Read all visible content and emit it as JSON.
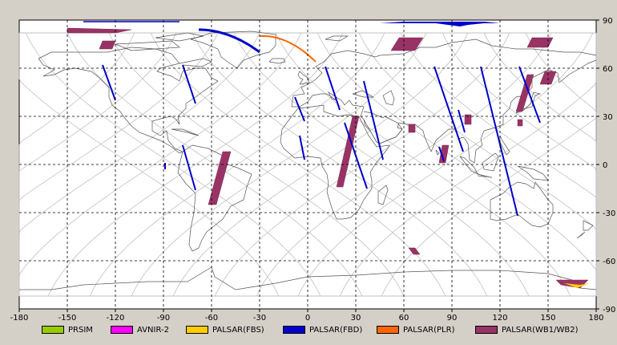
{
  "map": {
    "x_ticks": [
      "-180",
      "-150",
      "-120",
      "-90",
      "-60",
      "-30",
      "0",
      "30",
      "60",
      "90",
      "120",
      "150",
      "180"
    ],
    "y_ticks": [
      "90",
      "60",
      "30",
      "0",
      "-30",
      "-60",
      "-90"
    ],
    "colors": {
      "background": "#ffffff",
      "coast": "#555555",
      "orbit": "#c0c0c0",
      "grid": "#000000"
    }
  },
  "legend": [
    {
      "label": "PRSIM",
      "color": "#99cc00"
    },
    {
      "label": "AVNIR-2",
      "color": "#ff00ff"
    },
    {
      "label": "PALSAR(FBS)",
      "color": "#ffcc00"
    },
    {
      "label": "PALSAR(FBD)",
      "color": "#0000cc"
    },
    {
      "label": "PALSAR(PLR)",
      "color": "#ff6600"
    },
    {
      "label": "PALSAR(WB1/WB2)",
      "color": "#993366"
    }
  ],
  "swaths": {
    "fbd": [
      {
        "lon1": -128,
        "lat1": 62,
        "lon2": -120,
        "lat2": 40
      },
      {
        "lon1": -78,
        "lat1": 62,
        "lon2": -70,
        "lat2": 38
      },
      {
        "lon1": -78,
        "lat1": 12,
        "lon2": -70,
        "lat2": -16
      },
      {
        "lon1": -89,
        "lat1": 1,
        "lon2": -89,
        "lat2": -3
      },
      {
        "lon1": -8,
        "lat1": 42,
        "lon2": -2,
        "lat2": 27
      },
      {
        "lon1": -5,
        "lat1": 18,
        "lon2": -2,
        "lat2": 3
      },
      {
        "lon1": 11,
        "lat1": 61,
        "lon2": 20,
        "lat2": 34
      },
      {
        "lon1": 23,
        "lat1": 26,
        "lon2": 37,
        "lat2": -15
      },
      {
        "lon1": 35,
        "lat1": 52,
        "lon2": 47,
        "lat2": 3
      },
      {
        "lon1": 79,
        "lat1": 61,
        "lon2": 97,
        "lat2": 8
      },
      {
        "lon1": 94,
        "lat1": 34,
        "lon2": 98,
        "lat2": 20
      },
      {
        "lon1": 108,
        "lat1": 61,
        "lon2": 131,
        "lat2": -32
      },
      {
        "lon1": 132,
        "lat1": 61,
        "lon2": 145,
        "lat2": 26
      },
      {
        "lon1": 82,
        "lat1": 11,
        "lon2": 85,
        "lat2": 2
      }
    ],
    "wb": [
      [
        [
          -62,
          -25
        ],
        [
          -57,
          -25
        ],
        [
          -48,
          8
        ],
        [
          -53,
          8
        ]
      ],
      [
        [
          18,
          -14
        ],
        [
          22,
          -14
        ],
        [
          32,
          30
        ],
        [
          28,
          30
        ]
      ],
      [
        [
          82,
          1
        ],
        [
          86,
          1
        ],
        [
          88,
          12
        ],
        [
          84,
          12
        ]
      ],
      [
        [
          130,
          33
        ],
        [
          134,
          33
        ],
        [
          141,
          56
        ],
        [
          137,
          56
        ]
      ],
      [
        [
          -130,
          72
        ],
        [
          -122,
          72
        ],
        [
          -120,
          77
        ],
        [
          -128,
          77
        ]
      ],
      [
        [
          -150,
          82
        ],
        [
          -120,
          82
        ],
        [
          -110,
          84
        ],
        [
          -150,
          85
        ]
      ],
      [
        [
          52,
          71
        ],
        [
          67,
          71
        ],
        [
          72,
          79
        ],
        [
          57,
          79
        ]
      ],
      [
        [
          137,
          73
        ],
        [
          150,
          73
        ],
        [
          153,
          79
        ],
        [
          140,
          79
        ]
      ],
      [
        [
          145,
          50
        ],
        [
          152,
          50
        ],
        [
          155,
          58
        ],
        [
          148,
          58
        ]
      ],
      [
        [
          63,
          25
        ],
        [
          67,
          25
        ],
        [
          67,
          20
        ],
        [
          63,
          20
        ]
      ],
      [
        [
          98,
          31
        ],
        [
          102,
          31
        ],
        [
          102,
          25
        ],
        [
          98,
          25
        ]
      ],
      [
        [
          131,
          28
        ],
        [
          134,
          28
        ],
        [
          134,
          24
        ],
        [
          131,
          24
        ]
      ],
      [
        [
          63,
          -52
        ],
        [
          67,
          -52
        ],
        [
          70,
          -56
        ],
        [
          66,
          -56
        ]
      ],
      [
        [
          155,
          -72
        ],
        [
          175,
          -72
        ],
        [
          170,
          -77
        ],
        [
          158,
          -75
        ]
      ]
    ],
    "fbs": [
      [
        [
          160,
          -74
        ],
        [
          170,
          -75
        ],
        [
          176,
          -74
        ],
        [
          168,
          -77
        ]
      ]
    ],
    "plr": [
      {
        "lat": 80,
        "lon_start": -30,
        "lon_end": 5
      }
    ],
    "fbd_arcs": [
      {
        "lat_top": 84,
        "lon_start": -68,
        "lon_end": -30
      }
    ],
    "fbd_polar": [
      [
        [
          45,
          88
        ],
        [
          80,
          88
        ],
        [
          95,
          86
        ],
        [
          100,
          87
        ],
        [
          110,
          88
        ],
        [
          120,
          88
        ],
        [
          110,
          89
        ],
        [
          60,
          89
        ]
      ]
    ]
  }
}
